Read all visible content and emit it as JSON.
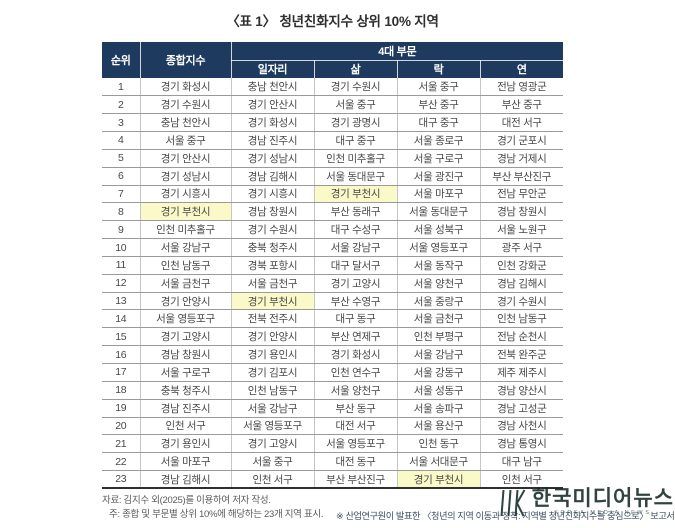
{
  "title": "〈표 1〉 청년친화지수 상위 10% 지역",
  "colors": {
    "header_bg": "#1e3a5f",
    "highlight": "#fafac8",
    "row_line": "#9a9a9a",
    "col_line": "#c6c6c6",
    "body_text": "#474747",
    "note_right_text": "#3c4f66",
    "watermark_text": "#142a26"
  },
  "table": {
    "headers": {
      "rank": "순위",
      "composite": "종합지수",
      "group": "4대 부문",
      "sub": [
        "일자리",
        "삶",
        "락",
        "연"
      ]
    },
    "rows": [
      {
        "rank": "1",
        "cells": [
          "경기 화성시",
          "충남 천안시",
          "경기 수원시",
          "서울 중구",
          "전남 영광군"
        ],
        "highlight": -1
      },
      {
        "rank": "2",
        "cells": [
          "경기 수원시",
          "경기 안산시",
          "서울 중구",
          "부산 중구",
          "부산 중구"
        ],
        "highlight": -1
      },
      {
        "rank": "3",
        "cells": [
          "충남 천안시",
          "경기 화성시",
          "경기 광명시",
          "대구 중구",
          "대전 서구"
        ],
        "highlight": -1
      },
      {
        "rank": "4",
        "cells": [
          "서울 중구",
          "경남 진주시",
          "대구 중구",
          "서울 종로구",
          "경기 군포시"
        ],
        "highlight": -1
      },
      {
        "rank": "5",
        "cells": [
          "경기 안산시",
          "경기 성남시",
          "인천 미추홀구",
          "서울 구로구",
          "경남 거제시"
        ],
        "highlight": -1
      },
      {
        "rank": "6",
        "cells": [
          "경기 성남시",
          "경남 김해시",
          "서울 동대문구",
          "서울 광진구",
          "부산 부산진구"
        ],
        "highlight": -1
      },
      {
        "rank": "7",
        "cells": [
          "경기 시흥시",
          "경기 시흥시",
          "경기 부천시",
          "서울 마포구",
          "전남 무안군"
        ],
        "highlight": 2
      },
      {
        "rank": "8",
        "cells": [
          "경기 부천시",
          "경남 창원시",
          "부산 동래구",
          "서울 동대문구",
          "경남 창원시"
        ],
        "highlight": 0
      },
      {
        "rank": "9",
        "cells": [
          "인천 미추홀구",
          "경기 수원시",
          "대구 수성구",
          "서울 성북구",
          "서울 노원구"
        ],
        "highlight": -1
      },
      {
        "rank": "10",
        "cells": [
          "서울 강남구",
          "충북 청주시",
          "서울 강남구",
          "서울 영등포구",
          "광주 서구"
        ],
        "highlight": -1
      },
      {
        "rank": "11",
        "cells": [
          "인천 남동구",
          "경북 포항시",
          "대구 달서구",
          "서울 동작구",
          "인천 강화군"
        ],
        "highlight": -1
      },
      {
        "rank": "12",
        "cells": [
          "서울 금천구",
          "서울 금천구",
          "경기 고양시",
          "서울 양천구",
          "경남 김해시"
        ],
        "highlight": -1
      },
      {
        "rank": "13",
        "cells": [
          "경기 안양시",
          "경기 부천시",
          "부산 수영구",
          "서울 중랑구",
          "경기 수원시"
        ],
        "highlight": 1
      },
      {
        "rank": "14",
        "cells": [
          "서울 영등포구",
          "전북 전주시",
          "대구 동구",
          "서울 금천구",
          "인천 남동구"
        ],
        "highlight": -1
      },
      {
        "rank": "15",
        "cells": [
          "경기 고양시",
          "경기 안양시",
          "부산 연제구",
          "인천 부평구",
          "전남 순천시"
        ],
        "highlight": -1
      },
      {
        "rank": "16",
        "cells": [
          "경남 창원시",
          "경기 용인시",
          "경기 화성시",
          "서울 강남구",
          "전북 완주군"
        ],
        "highlight": -1
      },
      {
        "rank": "17",
        "cells": [
          "서울 구로구",
          "경기 김포시",
          "인천 연수구",
          "서울 강동구",
          "제주 제주시"
        ],
        "highlight": -1
      },
      {
        "rank": "18",
        "cells": [
          "충북 청주시",
          "인천 남동구",
          "서울 양천구",
          "서울 성동구",
          "경남 양산시"
        ],
        "highlight": -1
      },
      {
        "rank": "19",
        "cells": [
          "경남 진주시",
          "서울 강남구",
          "부산 동구",
          "서울 송파구",
          "경남 고성군"
        ],
        "highlight": -1
      },
      {
        "rank": "20",
        "cells": [
          "인천 서구",
          "서울 영등포구",
          "대전 서구",
          "서울 용산구",
          "경남 사천시"
        ],
        "highlight": -1
      },
      {
        "rank": "21",
        "cells": [
          "경기 용인시",
          "경기 고양시",
          "서울 영등포구",
          "인천 동구",
          "경남 통영시"
        ],
        "highlight": -1
      },
      {
        "rank": "22",
        "cells": [
          "서울 마포구",
          "서울 중구",
          "대전 동구",
          "서울 서대문구",
          "대구 남구"
        ],
        "highlight": -1
      },
      {
        "rank": "23",
        "cells": [
          "경남 김해시",
          "인천 서구",
          "부산 부산진구",
          "경기 부천시",
          "인천 서구"
        ],
        "highlight": 3
      }
    ]
  },
  "footnotes": {
    "source": "자료: 김지수 외(2025)를 이용하여 저자 작성.",
    "note": "주: 종합 및 부문별 상위 10%에 해당하는 23개 지역 표시.",
    "report_ref": "※ 산업연구원이 발표한 〈청년의 지역 이동과 정착: 지역별 청년친화지수를 중심으로〉 보고서 중"
  },
  "watermark": {
    "logo": "hk-monogram",
    "text": "한국미디어뉴스",
    "subtext": "KOREA MEDIA NEWS"
  }
}
